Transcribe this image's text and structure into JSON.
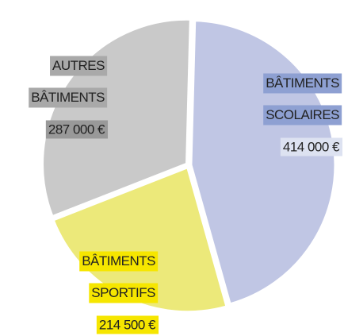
{
  "chart_data": {
    "type": "pie",
    "categories": [
      "BÂTIMENTS SCOLAIRES",
      "BÂTIMENTS SPORTIFS",
      "AUTRES BÂTIMENTS"
    ],
    "values": [
      414000,
      214500,
      287000
    ],
    "value_labels": [
      "414 000 €",
      "214 500  €",
      "287 000 €"
    ],
    "colors": [
      "#c0c6e4",
      "#ece97a",
      "#c9c9c9"
    ]
  }
}
